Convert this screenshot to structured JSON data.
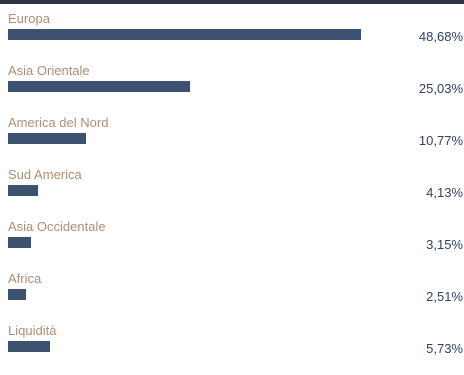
{
  "chart_data": {
    "type": "bar",
    "orientation": "horizontal",
    "categories": [
      "Europa",
      "Asia Orientale",
      "America del Nord",
      "Sud America",
      "Asia Occidentale",
      "Africa",
      "Liquidità"
    ],
    "values": [
      48.68,
      25.03,
      10.77,
      4.13,
      3.15,
      2.51,
      5.73
    ],
    "value_labels": [
      "48,68%",
      "25,03%",
      "10,77%",
      "4,13%",
      "3,15%",
      "2,51%",
      "5,73%"
    ],
    "xlim": [
      0,
      48.68
    ],
    "grid": false,
    "colors": {
      "bar": "#3d5170",
      "label": "#b08d78",
      "value": "#2f4262",
      "top_rule": "#2d3640"
    }
  }
}
